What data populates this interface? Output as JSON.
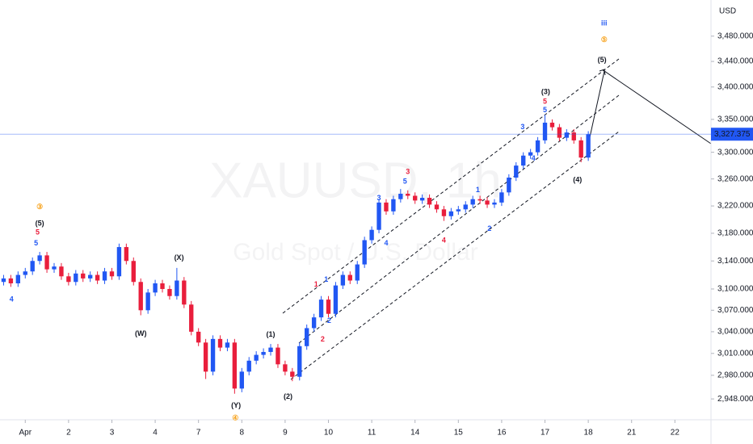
{
  "chart_data": {
    "type": "candlestick",
    "watermark": "XAUUSD, 1h",
    "subtitle": "Gold Spot / U.S. Dollar",
    "currency": "USD",
    "log_scale": true,
    "up_color": "#2157f3",
    "down_color": "#e91e3c",
    "ylim": [
      2920,
      3538
    ],
    "xlim": [
      -0.5,
      98
    ],
    "yticks": [
      {
        "value": 3480,
        "label": "3,480.000"
      },
      {
        "value": 3440,
        "label": "3,440.000"
      },
      {
        "value": 3400,
        "label": "3,400.000"
      },
      {
        "value": 3350,
        "label": "3,350.000"
      },
      {
        "value": 3300,
        "label": "3,300.000"
      },
      {
        "value": 3260,
        "label": "3,260.000"
      },
      {
        "value": 3220,
        "label": "3,220.000"
      },
      {
        "value": 3180,
        "label": "3,180.000"
      },
      {
        "value": 3140,
        "label": "3,140.000"
      },
      {
        "value": 3100,
        "label": "3,100.000"
      },
      {
        "value": 3070,
        "label": "3,070.000"
      },
      {
        "value": 3040,
        "label": "3,040.000"
      },
      {
        "value": 3010,
        "label": "3,010.000"
      },
      {
        "value": 2980,
        "label": "2,980.000"
      },
      {
        "value": 2948,
        "label": "2,948.000"
      }
    ],
    "xticks": [
      {
        "value": 3,
        "label": "Apr"
      },
      {
        "value": 9,
        "label": "2"
      },
      {
        "value": 15,
        "label": "3"
      },
      {
        "value": 21,
        "label": "4"
      },
      {
        "value": 27,
        "label": "7"
      },
      {
        "value": 33,
        "label": "8"
      },
      {
        "value": 39,
        "label": "9"
      },
      {
        "value": 45,
        "label": "10"
      },
      {
        "value": 51,
        "label": "11"
      },
      {
        "value": 57,
        "label": "14"
      },
      {
        "value": 63,
        "label": "15"
      },
      {
        "value": 69,
        "label": "16"
      },
      {
        "value": 75,
        "label": "17"
      },
      {
        "value": 81,
        "label": "18"
      },
      {
        "value": 87,
        "label": "21"
      },
      {
        "value": 93,
        "label": "22"
      }
    ],
    "last_price": {
      "value": 3327.375,
      "label": "3,327.375"
    },
    "open": [
      3110,
      3115,
      3108,
      3120,
      3125,
      3140,
      3148,
      3128,
      3132,
      3118,
      3110,
      3122,
      3115,
      3120,
      3112,
      3125,
      3118,
      3160,
      3140,
      3110,
      3070,
      3095,
      3108,
      3100,
      3090,
      3112,
      3078,
      3040,
      3025,
      2985,
      3030,
      3018,
      3025,
      2962,
      2985,
      3000,
      3008,
      3012,
      3018,
      2995,
      2985,
      2978,
      3020,
      3045,
      3060,
      3085,
      3065,
      3105,
      3120,
      3112,
      3135,
      3170,
      3185,
      3225,
      3212,
      3230,
      3238,
      3235,
      3228,
      3232,
      3222,
      3215,
      3205,
      3212,
      3215,
      3222,
      3230,
      3228,
      3222,
      3225,
      3240,
      3262,
      3280,
      3295,
      3300,
      3318,
      3345,
      3338,
      3322,
      3330,
      3318,
      3292
    ],
    "high": [
      3120,
      3120,
      3125,
      3130,
      3145,
      3153,
      3153,
      3137,
      3137,
      3123,
      3127,
      3127,
      3125,
      3125,
      3130,
      3130,
      3165,
      3165,
      3145,
      3115,
      3100,
      3113,
      3113,
      3105,
      3130,
      3117,
      3083,
      3045,
      3030,
      3035,
      3035,
      3030,
      3030,
      2990,
      3005,
      3013,
      3017,
      3023,
      3023,
      3000,
      2990,
      3025,
      3050,
      3065,
      3090,
      3090,
      3110,
      3125,
      3125,
      3140,
      3175,
      3190,
      3230,
      3230,
      3235,
      3245,
      3243,
      3240,
      3237,
      3237,
      3227,
      3220,
      3217,
      3220,
      3227,
      3235,
      3235,
      3233,
      3230,
      3245,
      3267,
      3285,
      3300,
      3305,
      3323,
      3357,
      3350,
      3343,
      3335,
      3335,
      3323,
      3332
    ],
    "low": [
      3105,
      3103,
      3103,
      3115,
      3120,
      3135,
      3123,
      3123,
      3113,
      3105,
      3105,
      3110,
      3110,
      3107,
      3107,
      3113,
      3113,
      3135,
      3105,
      3063,
      3065,
      3090,
      3095,
      3085,
      3085,
      3073,
      3035,
      3020,
      2975,
      2980,
      3013,
      3013,
      2955,
      2957,
      2980,
      2995,
      3003,
      3007,
      2990,
      2980,
      2972,
      2973,
      3015,
      3040,
      3055,
      3060,
      3060,
      3100,
      3107,
      3107,
      3130,
      3165,
      3180,
      3207,
      3207,
      3225,
      3230,
      3223,
      3223,
      3217,
      3210,
      3198,
      3200,
      3207,
      3210,
      3217,
      3223,
      3217,
      3217,
      3220,
      3235,
      3257,
      3275,
      3290,
      3295,
      3313,
      3333,
      3317,
      3317,
      3313,
      3285,
      3287
    ],
    "close": [
      3115,
      3108,
      3120,
      3125,
      3140,
      3148,
      3128,
      3132,
      3118,
      3110,
      3122,
      3115,
      3120,
      3112,
      3125,
      3118,
      3160,
      3140,
      3110,
      3070,
      3095,
      3108,
      3100,
      3090,
      3112,
      3078,
      3040,
      3025,
      2985,
      3030,
      3018,
      3025,
      2962,
      2985,
      3000,
      3008,
      3012,
      3018,
      2995,
      2985,
      2978,
      3020,
      3045,
      3060,
      3085,
      3065,
      3105,
      3120,
      3112,
      3135,
      3170,
      3185,
      3225,
      3212,
      3230,
      3238,
      3235,
      3228,
      3232,
      3222,
      3215,
      3205,
      3212,
      3215,
      3222,
      3230,
      3228,
      3222,
      3225,
      3240,
      3262,
      3280,
      3295,
      3300,
      3318,
      3345,
      3338,
      3322,
      3330,
      3318,
      3292,
      3327.375
    ],
    "annotations": [
      {
        "text": "③",
        "x": 5,
        "y": 3218,
        "color": "#f7a21b"
      },
      {
        "text": "(5)",
        "x": 5,
        "y": 3194,
        "color": "#131722"
      },
      {
        "text": "5",
        "x": 4.7,
        "y": 3181,
        "color": "#e91e3c"
      },
      {
        "text": "5",
        "x": 4.5,
        "y": 3165,
        "color": "#2157f3"
      },
      {
        "text": "4",
        "x": 1.1,
        "y": 3085,
        "color": "#2157f3"
      },
      {
        "text": "(W)",
        "x": 19,
        "y": 3037,
        "color": "#131722"
      },
      {
        "text": "(X)",
        "x": 24.3,
        "y": 3144,
        "color": "#131722"
      },
      {
        "text": "(Y)",
        "x": 32.2,
        "y": 2939,
        "color": "#131722"
      },
      {
        "text": "④",
        "x": 32.1,
        "y": 2922,
        "color": "#f7a21b"
      },
      {
        "text": "(1)",
        "x": 37,
        "y": 3036,
        "color": "#131722"
      },
      {
        "text": "(2)",
        "x": 39.4,
        "y": 2951,
        "color": "#131722"
      },
      {
        "text": "1",
        "x": 43.3,
        "y": 3106,
        "color": "#e91e3c"
      },
      {
        "text": "1",
        "x": 44.7,
        "y": 3113,
        "color": "#2157f3"
      },
      {
        "text": "2",
        "x": 45.1,
        "y": 3055,
        "color": "#2157f3"
      },
      {
        "text": "2",
        "x": 44.2,
        "y": 3029,
        "color": "#e91e3c"
      },
      {
        "text": "3",
        "x": 52,
        "y": 3231,
        "color": "#2157f3"
      },
      {
        "text": "4",
        "x": 53,
        "y": 3165,
        "color": "#2157f3"
      },
      {
        "text": "3",
        "x": 56,
        "y": 3270,
        "color": "#e91e3c"
      },
      {
        "text": "5",
        "x": 55.6,
        "y": 3256,
        "color": "#2157f3"
      },
      {
        "text": "4",
        "x": 61,
        "y": 3169,
        "color": "#e91e3c"
      },
      {
        "text": "1",
        "x": 65.7,
        "y": 3243,
        "color": "#2157f3"
      },
      {
        "text": "2",
        "x": 67.3,
        "y": 3186,
        "color": "#2157f3"
      },
      {
        "text": "3",
        "x": 71.9,
        "y": 3338,
        "color": "#2157f3"
      },
      {
        "text": "4",
        "x": 73.4,
        "y": 3290,
        "color": "#2157f3"
      },
      {
        "text": "(3)",
        "x": 75.1,
        "y": 3392,
        "color": "#131722"
      },
      {
        "text": "5",
        "x": 75,
        "y": 3377,
        "color": "#e91e3c"
      },
      {
        "text": "5",
        "x": 75,
        "y": 3364,
        "color": "#2157f3"
      },
      {
        "text": "(4)",
        "x": 79.5,
        "y": 3258,
        "color": "#131722"
      },
      {
        "text": "(5)",
        "x": 82.9,
        "y": 3442,
        "color": "#131722"
      },
      {
        "text": "iii",
        "x": 83.2,
        "y": 3500,
        "color": "#2157f3"
      },
      {
        "text": "⑤",
        "x": 83.2,
        "y": 3474,
        "color": "#f7a21b"
      }
    ]
  }
}
